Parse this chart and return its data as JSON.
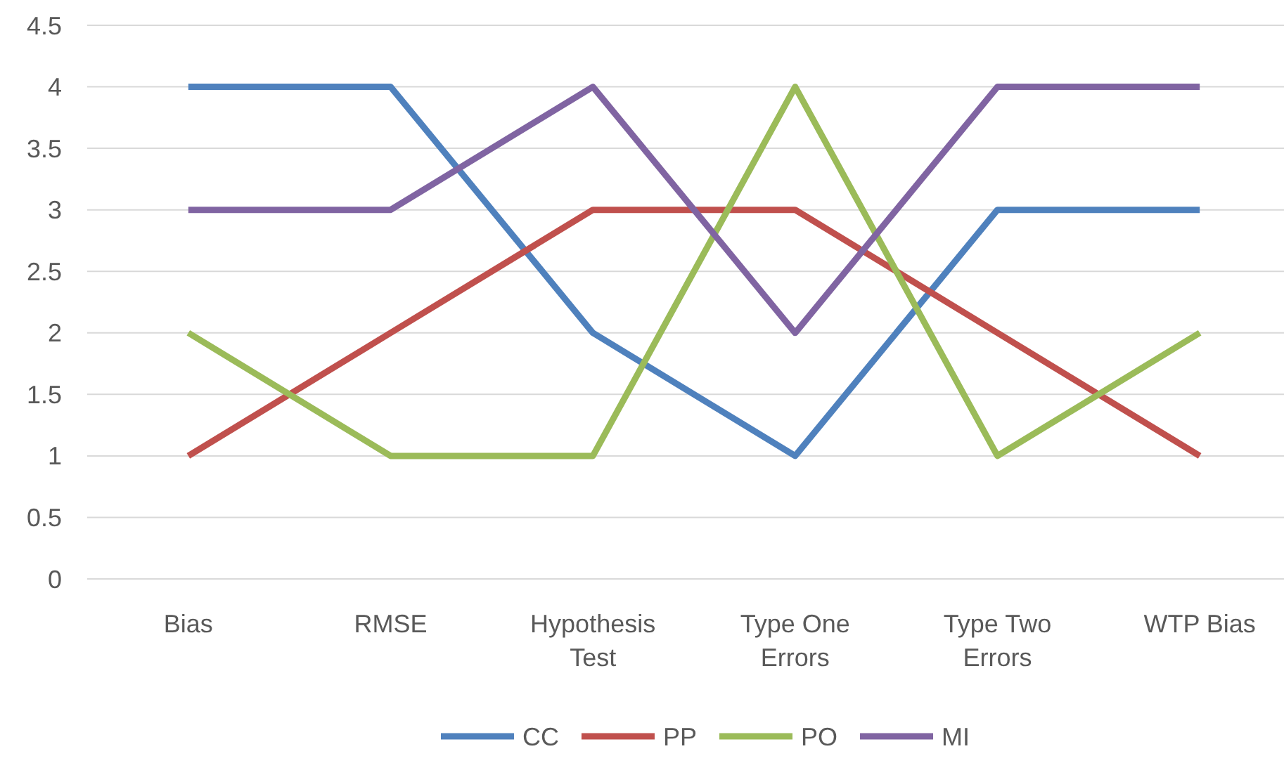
{
  "chart_data": {
    "type": "line",
    "categories": [
      "Bias",
      "RMSE",
      "Hypothesis Test",
      "Type One Errors",
      "Type Two Errors",
      "WTP Bias"
    ],
    "series": [
      {
        "name": "CC",
        "color": "#4f81bd",
        "values": [
          4,
          4,
          2,
          1,
          3,
          3
        ]
      },
      {
        "name": "PP",
        "color": "#c0504d",
        "values": [
          1,
          2,
          3,
          3,
          2,
          1
        ]
      },
      {
        "name": "PO",
        "color": "#9bbb59",
        "values": [
          2,
          1,
          1,
          4,
          1,
          2
        ]
      },
      {
        "name": "MI",
        "color": "#8064a2",
        "values": [
          3,
          3,
          4,
          2,
          4,
          4
        ]
      }
    ],
    "ylim": [
      0,
      4.5
    ],
    "yticks": [
      0,
      0.5,
      1,
      1.5,
      2,
      2.5,
      3,
      3.5,
      4,
      4.5
    ],
    "grid": "y",
    "legend": "bottom",
    "marker": "none",
    "line_style": "solid"
  }
}
